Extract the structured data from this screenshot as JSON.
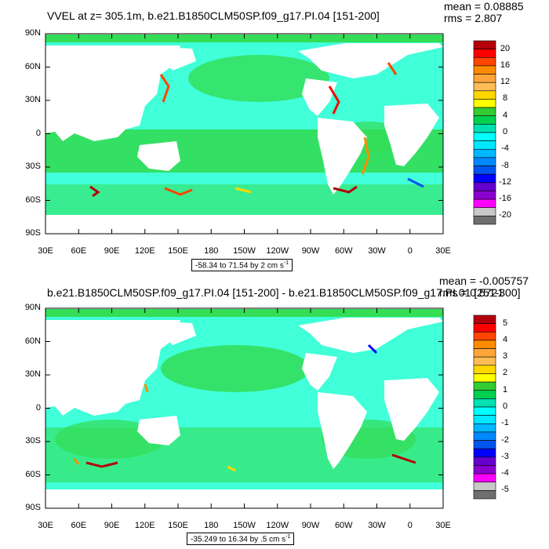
{
  "panels": [
    {
      "title": "VVEL at z= 305.1m, b.e21.B1850CLM50SP.f09_g17.PI.04 [151-200]",
      "stats": {
        "mean": "mean = 0.08885",
        "rms": "rms = 2.807"
      },
      "range_label": "-58.34 to 71.54 by 2 cm s",
      "range_unit_sup": "-1",
      "colorbar_labels": [
        "20",
        "16",
        "12",
        "8",
        "4",
        "0",
        "-4",
        "-8",
        "-12",
        "-16",
        "-20"
      ],
      "colorbar_colors": [
        "#b5000b",
        "#ff0000",
        "#ff4500",
        "#ff8c00",
        "#ffa53a",
        "#ffbe55",
        "#ffd700",
        "#ffff00",
        "#33cc33",
        "#00d050",
        "#00e0b0",
        "#00ffff",
        "#00e8ff",
        "#00b8ff",
        "#0088ff",
        "#0055ee",
        "#0000ff",
        "#6600cc",
        "#8a00d0",
        "#ff00ff",
        "#c8c8c8",
        "#6e6e6e"
      ]
    },
    {
      "title": "b.e21.B1850CLM50SP.f09_g17.PI.04 [151-200] - b.e21.B1850CLM50SP.f09_g17.PI.01 [251-300]",
      "stats": {
        "mean": "mean = -0.005757",
        "rms": "rms = 0.5721"
      },
      "range_label": "-35.249 to 16.34 by .5 cm s",
      "range_unit_sup": "-1",
      "colorbar_labels": [
        "5",
        "4",
        "3",
        "2",
        "1",
        "0",
        "-1",
        "-2",
        "-3",
        "-4",
        "-5"
      ],
      "colorbar_colors": [
        "#b5000b",
        "#ff0000",
        "#ff4500",
        "#ff8c00",
        "#ffa53a",
        "#ffbe55",
        "#ffd700",
        "#ffff00",
        "#33cc33",
        "#00d050",
        "#00e0b0",
        "#00ffff",
        "#00e8ff",
        "#00b8ff",
        "#0088ff",
        "#0055ee",
        "#0000ff",
        "#6600cc",
        "#8a00d0",
        "#ff00ff",
        "#c8c8c8",
        "#6e6e6e"
      ]
    }
  ],
  "lat_labels": [
    "90N",
    "60N",
    "30N",
    "0",
    "30S",
    "60S",
    "90S"
  ],
  "lon_labels": [
    "30E",
    "60E",
    "90E",
    "120E",
    "150E",
    "180",
    "150W",
    "120W",
    "90W",
    "60W",
    "30W",
    "0",
    "30E"
  ],
  "colors": {
    "ocean_base": "#00ffcc",
    "ocean_green": "#33dd55",
    "land": "#ffffff"
  }
}
